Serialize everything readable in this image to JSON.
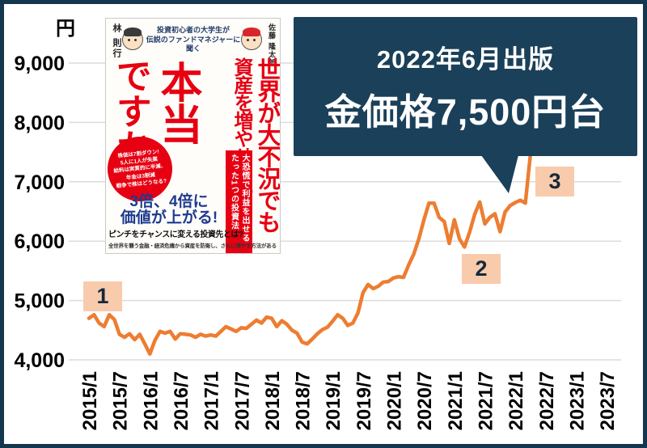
{
  "colors": {
    "frame_navy": "#14374e",
    "callout_navy": "#1b4059",
    "line_orange": "#ed7d31",
    "badge_peach": "#f8cbad",
    "book_title_red": "#e60012",
    "grid_gray": "#dcdcdc"
  },
  "callout": {
    "line1": "2022年6月出版",
    "line2": "金価格7,500円台"
  },
  "annotations": [
    {
      "label": "1"
    },
    {
      "label": "2"
    },
    {
      "label": "3"
    }
  ],
  "book": {
    "author_left": "林 則行",
    "author_right": "佐藤 隆太郎",
    "tagline": "投資初心者の大学生が\n伝説のファンドマネジャーに\n聞く",
    "title_col1": "世界が大不況でも",
    "title_col2": "資産を増やせるって",
    "title_main": "本当",
    "title_sub": "ですか?",
    "burst": "株価は7割ダウン!\n5人に1人が失業\n給料は実質的に半減、\n年金は3割減\n戦争で株はどうなる?",
    "band": "大恐慌で利益を出せる\nたった1つの投資法",
    "blue_line1": "3倍、4倍に",
    "blue_line2": "価値が上がる!",
    "pinch": "ピンチをチャンスに変える投資先とは?",
    "bottom_note": "全世界を襲う金融・経済危機から資産を防衛し、さらに増やす方法がある"
  },
  "chart_data": {
    "type": "line",
    "ylabel": "円",
    "frequency": "monthly",
    "start": "2015/1",
    "end": "2022/4",
    "grid": true,
    "ylim": [
      3900,
      9600
    ],
    "x_tick_labels": [
      "2015/1",
      "2015/7",
      "2016/1",
      "2016/7",
      "2017/1",
      "2017/7",
      "2018/1",
      "2018/7",
      "2019/1",
      "2019/7",
      "2020/1",
      "2020/7",
      "2021/1",
      "2021/7",
      "2022/1",
      "2022/7",
      "2023/1",
      "2023/7"
    ],
    "y_ticks": [
      {
        "value": 4000,
        "label": "4,000"
      },
      {
        "value": 5000,
        "label": "5,000"
      },
      {
        "value": 6000,
        "label": "6,000"
      },
      {
        "value": 7000,
        "label": "7,000"
      },
      {
        "value": 8000,
        "label": "8,000"
      },
      {
        "value": 9000,
        "label": "9,000"
      }
    ],
    "series": [
      {
        "name": "金価格",
        "values": [
          4700,
          4760,
          4620,
          4560,
          4760,
          4680,
          4430,
          4380,
          4440,
          4340,
          4430,
          4270,
          4100,
          4330,
          4480,
          4450,
          4480,
          4350,
          4440,
          4430,
          4420,
          4380,
          4430,
          4400,
          4420,
          4400,
          4480,
          4560,
          4520,
          4480,
          4540,
          4530,
          4600,
          4670,
          4620,
          4720,
          4700,
          4560,
          4660,
          4600,
          4500,
          4450,
          4300,
          4270,
          4350,
          4440,
          4510,
          4550,
          4650,
          4760,
          4700,
          4580,
          4620,
          4790,
          5130,
          5270,
          5200,
          5240,
          5310,
          5320,
          5380,
          5400,
          5390,
          5600,
          5780,
          6040,
          6360,
          6640,
          6640,
          6400,
          6330,
          5960,
          6360,
          6040,
          5900,
          6150,
          6450,
          6660,
          6290,
          6400,
          6460,
          6160,
          6490,
          6600,
          6650,
          6690,
          6640,
          7470
        ]
      }
    ]
  }
}
